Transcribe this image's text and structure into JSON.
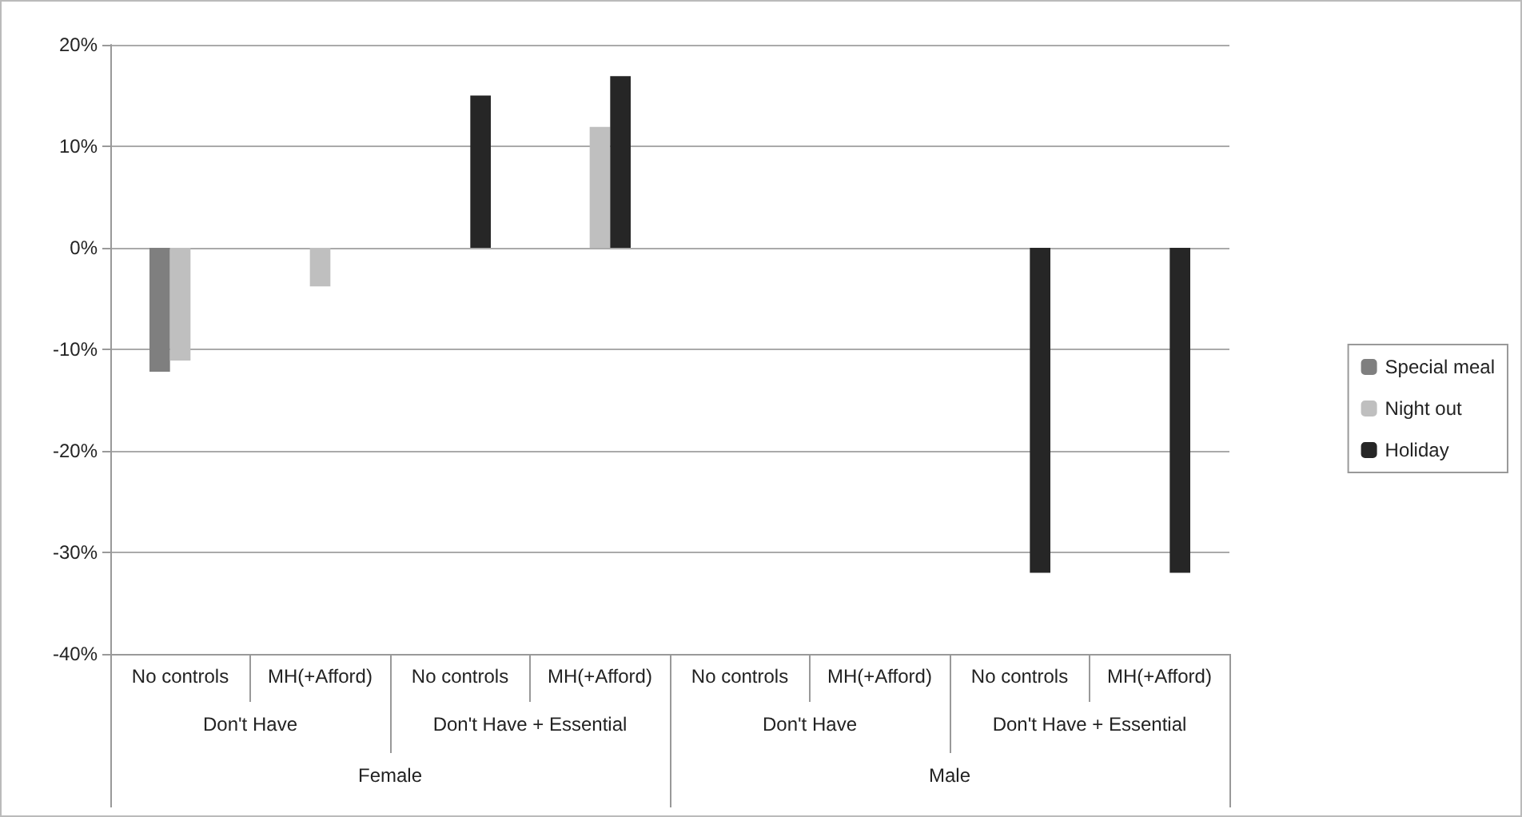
{
  "chart_data": {
    "type": "bar",
    "categories": [
      "No controls",
      "MH(+Afford)",
      "No controls",
      "MH(+Afford)",
      "No controls",
      "MH(+Afford)",
      "No controls",
      "MH(+Afford)"
    ],
    "annotations": [
      "Don't Have",
      "Don't Have + Essential",
      "Don't Have",
      "Don't Have + Essential",
      "Female",
      "Male"
    ],
    "series": [
      {
        "name": "Special meal",
        "color": "#7f7f7f",
        "values": [
          -12.2,
          null,
          null,
          null,
          null,
          null,
          null,
          null
        ]
      },
      {
        "name": "Night out",
        "color": "#bfbfbf",
        "values": [
          -11.1,
          -3.8,
          null,
          11.9,
          null,
          null,
          null,
          null
        ]
      },
      {
        "name": "Holiday",
        "color": "#262626",
        "values": [
          null,
          null,
          15,
          16.9,
          null,
          null,
          -32,
          -32
        ]
      }
    ],
    "ylim": [
      -40,
      20
    ],
    "yticks": [
      {
        "value": -40,
        "label": "-40%"
      },
      {
        "value": -30,
        "label": "-30%"
      },
      {
        "value": -20,
        "label": "-20%"
      },
      {
        "value": -10,
        "label": "-10%"
      },
      {
        "value": 0,
        "label": "0%"
      },
      {
        "value": 10,
        "label": "10%"
      },
      {
        "value": 20,
        "label": "20%"
      }
    ],
    "grid": "y",
    "legend": "right"
  }
}
